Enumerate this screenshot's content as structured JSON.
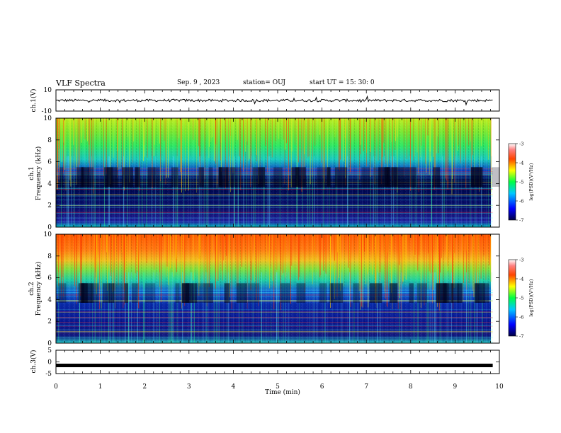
{
  "header": {
    "title": "VLF Spectra",
    "date": "Sep. 9 , 2023",
    "station": "station= OUJ",
    "start": "start  UT =   15: 30: 0"
  },
  "chart_data": [
    {
      "type": "line",
      "name": "ch1-waveform",
      "ylabel": "ch.1(V)",
      "ylim": [
        -10,
        10
      ],
      "y_tick_labels": [
        "10",
        "-10"
      ],
      "x": [
        0,
        9.85
      ],
      "baseline": 0,
      "noise_amplitude": 1.2
    },
    {
      "type": "heatmap",
      "name": "ch1-spectrogram",
      "ylabel": "ch.1\nFrequency (kHz)",
      "ylim": [
        0,
        10
      ],
      "y_tick_labels": [
        "0",
        "2",
        "4",
        "6",
        "8",
        "10"
      ],
      "x_range_min": [
        0,
        9.85
      ],
      "colorbar": {
        "label": "log(PSD)(V²/Hz)",
        "range": [
          -7,
          -3
        ],
        "tick_labels": [
          "-3",
          "-4",
          "-5",
          "-6",
          "-7"
        ]
      }
    },
    {
      "type": "heatmap",
      "name": "ch2-spectrogram",
      "ylabel": "ch.2\nFrequency (kHz)",
      "ylim": [
        0,
        10
      ],
      "y_tick_labels": [
        "0",
        "2",
        "4",
        "6",
        "8",
        "10"
      ],
      "x_range_min": [
        0,
        9.85
      ],
      "colorbar": {
        "label": "log(PSD)(V²/Hz)",
        "range": [
          -7,
          -3
        ],
        "tick_labels": [
          "-3",
          "-4",
          "-5",
          "-6",
          "-7"
        ]
      }
    },
    {
      "type": "line",
      "name": "ch3-waveform",
      "ylabel": "ch.3(V)",
      "ylim": [
        -5,
        5
      ],
      "y_tick_labels": [
        "5",
        "0",
        "-5"
      ],
      "x": [
        0,
        9.85
      ],
      "y": [
        -1.5,
        -1.5
      ]
    }
  ],
  "x_axis": {
    "label": "Time (min)",
    "range": [
      0,
      10
    ],
    "tick_labels": [
      "0",
      "1",
      "2",
      "3",
      "4",
      "5",
      "6",
      "7",
      "8",
      "9",
      "10"
    ]
  },
  "colors": {
    "spectrum_high": "#ff2200",
    "spectrum_mid": "#22ee22",
    "spectrum_low": "#001188",
    "background": "#000020"
  }
}
